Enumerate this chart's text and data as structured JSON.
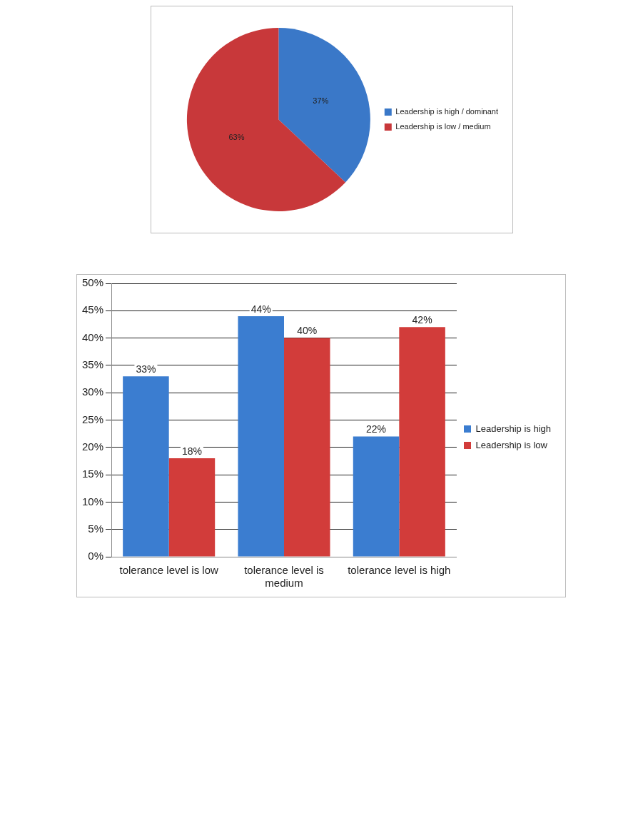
{
  "chart_data": [
    {
      "type": "pie",
      "categories": [
        "Leadership is high / dominant",
        "Leadership is low / medium"
      ],
      "values": [
        37,
        63
      ],
      "colors": [
        "#3a78c8",
        "#c8383a"
      ],
      "value_labels": [
        "37%",
        "63%"
      ],
      "legend": "right"
    },
    {
      "type": "bar",
      "categories": [
        "tolerance level is low",
        "tolerance level is medium",
        "tolerance level is high"
      ],
      "series": [
        {
          "name": "Leadership is high",
          "color": "#3b7dd0",
          "values": [
            33,
            44,
            22
          ],
          "value_labels": [
            "33%",
            "44%",
            "22%"
          ]
        },
        {
          "name": "Leadership is low",
          "color": "#d23c3a",
          "values": [
            18,
            40,
            42
          ],
          "value_labels": [
            "18%",
            "40%",
            "42%"
          ]
        }
      ],
      "ylim": [
        0,
        50
      ],
      "yticks": [
        {
          "value": 0,
          "label": "0%"
        },
        {
          "value": 5,
          "label": "5%"
        },
        {
          "value": 10,
          "label": "10%"
        },
        {
          "value": 15,
          "label": "15%"
        },
        {
          "value": 20,
          "label": "20%"
        },
        {
          "value": 25,
          "label": "25%"
        },
        {
          "value": 30,
          "label": "30%"
        },
        {
          "value": 35,
          "label": "35%"
        },
        {
          "value": 40,
          "label": "40%"
        },
        {
          "value": 45,
          "label": "45%"
        },
        {
          "value": 50,
          "label": "50%"
        }
      ],
      "grid": "y",
      "legend": "right"
    }
  ]
}
